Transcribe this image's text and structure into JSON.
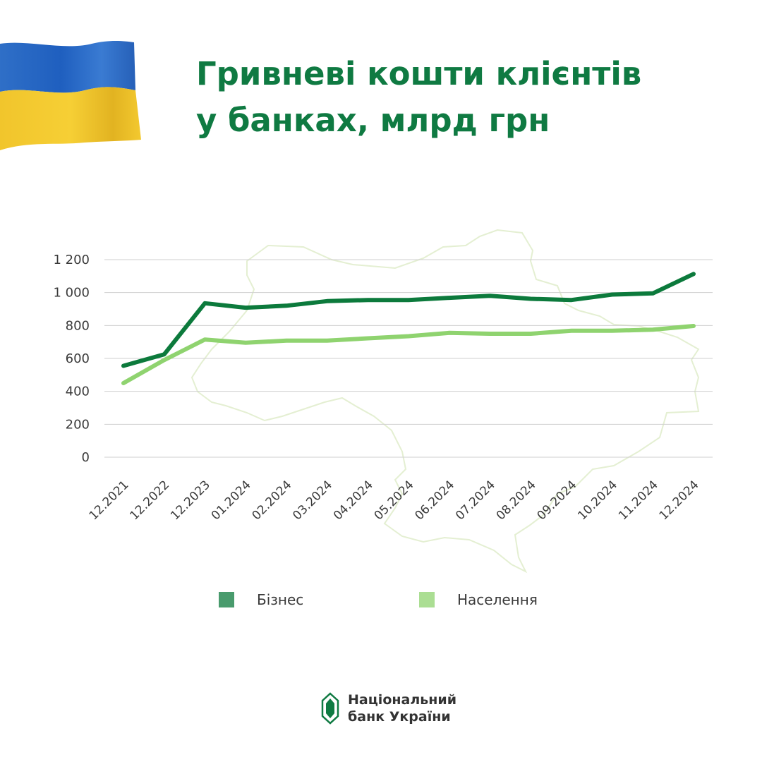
{
  "header": {
    "title_line1": "Гривневі кошти клієнтів",
    "title_line2": "у банках, млрд грн"
  },
  "colors": {
    "business": "#0c7a3c",
    "population": "#8fd36f",
    "title": "#0f7a42",
    "grid": "#cfcfcf",
    "map_outline": "#e4efd2"
  },
  "chart_data": {
    "type": "line",
    "title": "Гривневі кошти клієнтів у банках, млрд грн",
    "categories": [
      "12.2021",
      "12.2022",
      "12.2023",
      "01.2024",
      "02.2024",
      "03.2024",
      "04.2024",
      "05.2024",
      "06.2024",
      "07.2024",
      "08.2024",
      "09.2024",
      "10.2024",
      "11.2024",
      "12.2024"
    ],
    "series": [
      {
        "name": "Бізнес",
        "values": [
          555,
          625,
          935,
          908,
          920,
          948,
          955,
          955,
          968,
          980,
          962,
          955,
          988,
          995,
          1113
        ]
      },
      {
        "name": "Населення",
        "values": [
          450,
          590,
          715,
          695,
          708,
          708,
          722,
          735,
          755,
          750,
          750,
          768,
          768,
          775,
          797
        ]
      }
    ],
    "y_ticks": [
      "0",
      "200",
      "400",
      "600",
      "800",
      "1 000",
      "1 200"
    ],
    "ylim": [
      0,
      1200
    ],
    "grid": true,
    "legend_position": "bottom"
  },
  "legend": {
    "business_label": "Бізнес",
    "population_label": "Населення"
  },
  "footer": {
    "logo_line1": "Національний",
    "logo_line2": "банк України"
  }
}
